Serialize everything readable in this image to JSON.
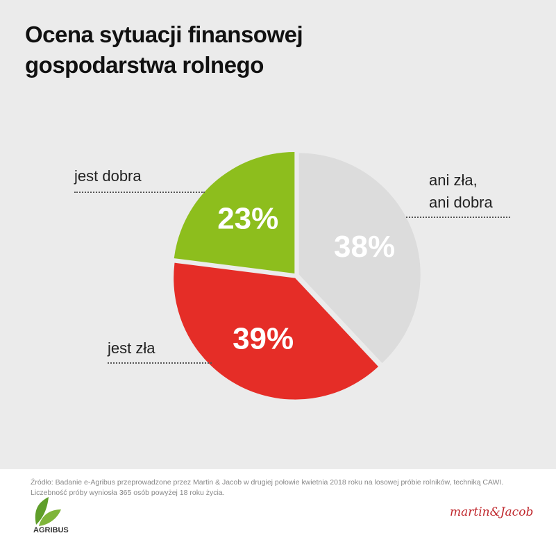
{
  "chart_data": {
    "type": "pie",
    "title": "Ocena sytuacji finansowej gospodarstwa rolnego",
    "categories": [
      "ani zła,\nani dobra",
      "jest zła",
      "jest dobra"
    ],
    "values": [
      38,
      39,
      23
    ],
    "value_labels": [
      "38%",
      "39%",
      "23%"
    ],
    "colors": [
      "#dcdcdc",
      "#e52d27",
      "#8dbe1d"
    ],
    "source": "Źródło: Badanie e-Agribus przeprowadzone przez Martin & Jacob w drugiej połowie kwietnia 2018 roku na losowej próbie rolników, techniką CAWI. Liczebność próby wyniosła 365 osób powyżej 18 roku życia.",
    "logo": "AGRIBUS",
    "signature": "martin&Jacob"
  }
}
